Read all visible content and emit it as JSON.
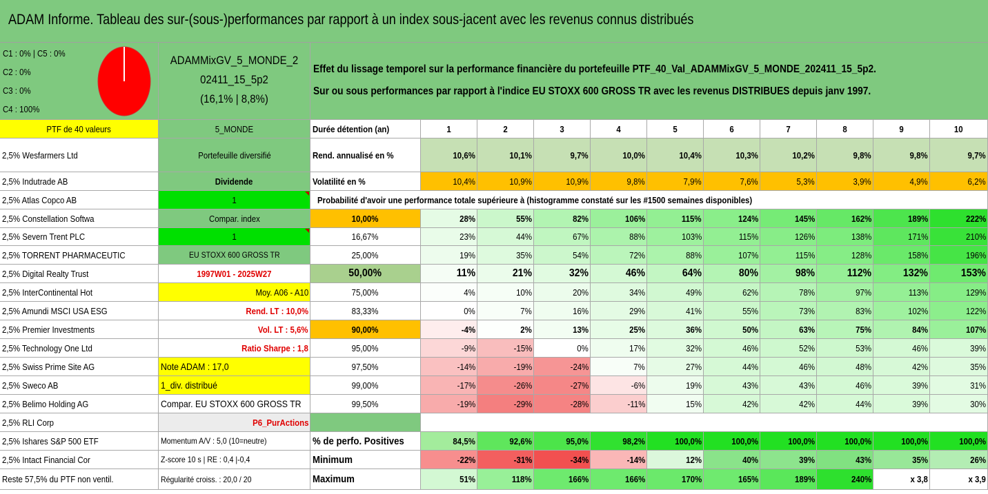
{
  "title": "ADAM Informe. Tableau des sur-(sous-)performances par rapport à un index sous-jacent avec les revenus connus distribués",
  "classes": [
    "C1 : 0% | C5 : 0%",
    "C2 : 0%",
    "C3 : 0%",
    "C4 : 100%"
  ],
  "portfolio_name_lines": [
    "ADAMMixGV_5_MONDE_2",
    "02411_15_5p2",
    "(16,1% | 8,8%)"
  ],
  "effect_lines": [
    "Effet du lissage temporel sur la performance financière du portefeuille PTF_40_Val_ADAMMixGV_5_MONDE_202411_15_5p2.",
    "Sur ou sous performances par rapport à l'indice EU STOXX 600 GROSS TR avec les revenus DISTRIBUES depuis janv 1997."
  ],
  "colors": {
    "green_header": "#7fc97f",
    "yellow": "#ffff00",
    "bright_green": "#00e000",
    "orange": "#ffc000",
    "red_text": "#e00000"
  },
  "pie_icon": "pie-chart-icon",
  "ptf_header": "PTF de 40 valeurs",
  "holdings": [
    "2,5% Wesfarmers Ltd",
    "2,5% Indutrade AB",
    "2,5% Atlas Copco AB",
    "2,5% Constellation Softwa",
    "2,5% Severn Trent PLC",
    "2,5% TORRENT PHARMACEUTIC",
    "2,5% Digital Realty Trust",
    "2,5% InterContinental Hot",
    "2,5% Amundi MSCI USA ESG",
    "2,5% Premier Investments",
    "2,5% Technology One Ltd",
    "2,5% Swiss Prime Site AG",
    "2,5% Sweco AB",
    "2,5% Belimo Holding AG",
    "2,5% RLI Corp",
    "2,5% Ishares S&P 500 ETF",
    "2,5% Intact Financial Cor",
    "Reste 57,5% du PTF non ventil."
  ],
  "info_col": [
    "5_MONDE",
    "Portefeuille diversifié",
    "Dividende",
    "1",
    "Compar. index",
    "1",
    "EU STOXX 600 GROSS TR",
    "1997W01 - 2025W27",
    "Moy. A06 - A10",
    "Rend. LT : 10,0%",
    "Vol. LT : 5,6%",
    "Ratio Sharpe : 1,8",
    "Note ADAM : 17,0",
    "1_div. distribué",
    "Compar. EU STOXX 600 GROSS TR",
    "P6_PurActions",
    "Momentum A/V : 5,0 (10=neutre)",
    "Z-score 10 s | RE : 0,4 |-0,4",
    "Régularité croiss. : 20,0 / 20"
  ],
  "duration_label": "Durée détention (an)",
  "years": [
    "1",
    "2",
    "3",
    "4",
    "5",
    "6",
    "7",
    "8",
    "9",
    "10"
  ],
  "rend_label": "Rend. annualisé en %",
  "rend_values": [
    "10,6%",
    "10,1%",
    "9,7%",
    "10,0%",
    "10,4%",
    "10,3%",
    "10,2%",
    "9,8%",
    "9,8%",
    "9,7%"
  ],
  "vol_label": "Volatilité en %",
  "vol_values": [
    "10,4%",
    "10,9%",
    "10,9%",
    "9,8%",
    "7,9%",
    "7,6%",
    "5,3%",
    "3,9%",
    "4,9%",
    "6,2%"
  ],
  "prob_title": "Probabilité d'avoir une performance totale supérieure à (histogramme constaté sur les #1500 semaines disponibles)",
  "prob_rows": [
    {
      "p": "10,00%",
      "v": [
        "28%",
        "55%",
        "82%",
        "106%",
        "115%",
        "124%",
        "145%",
        "162%",
        "189%",
        "222%"
      ]
    },
    {
      "p": "16,67%",
      "v": [
        "23%",
        "44%",
        "67%",
        "88%",
        "103%",
        "115%",
        "126%",
        "138%",
        "171%",
        "210%"
      ]
    },
    {
      "p": "25,00%",
      "v": [
        "19%",
        "35%",
        "54%",
        "72%",
        "88%",
        "107%",
        "115%",
        "128%",
        "158%",
        "196%"
      ]
    },
    {
      "p": "50,00%",
      "v": [
        "11%",
        "21%",
        "32%",
        "46%",
        "64%",
        "80%",
        "98%",
        "112%",
        "132%",
        "153%"
      ]
    },
    {
      "p": "75,00%",
      "v": [
        "4%",
        "10%",
        "20%",
        "34%",
        "49%",
        "62%",
        "78%",
        "97%",
        "113%",
        "129%"
      ]
    },
    {
      "p": "83,33%",
      "v": [
        "0%",
        "7%",
        "16%",
        "29%",
        "41%",
        "55%",
        "73%",
        "83%",
        "102%",
        "122%"
      ]
    },
    {
      "p": "90,00%",
      "v": [
        "-4%",
        "2%",
        "13%",
        "25%",
        "36%",
        "50%",
        "63%",
        "75%",
        "84%",
        "107%"
      ]
    },
    {
      "p": "95,00%",
      "v": [
        "-9%",
        "-15%",
        "0%",
        "17%",
        "32%",
        "46%",
        "52%",
        "53%",
        "46%",
        "39%"
      ]
    },
    {
      "p": "97,50%",
      "v": [
        "-14%",
        "-19%",
        "-24%",
        "7%",
        "27%",
        "44%",
        "46%",
        "48%",
        "42%",
        "35%"
      ]
    },
    {
      "p": "99,00%",
      "v": [
        "-17%",
        "-26%",
        "-27%",
        "-6%",
        "19%",
        "43%",
        "43%",
        "46%",
        "39%",
        "31%"
      ]
    },
    {
      "p": "99,50%",
      "v": [
        "-19%",
        "-29%",
        "-28%",
        "-11%",
        "15%",
        "42%",
        "42%",
        "44%",
        "39%",
        "30%"
      ]
    }
  ],
  "pos_label": "% de perfo. Positives",
  "pos_values": [
    "84,5%",
    "92,6%",
    "95,0%",
    "98,2%",
    "100,0%",
    "100,0%",
    "100,0%",
    "100,0%",
    "100,0%",
    "100,0%"
  ],
  "min_label": "Minimum",
  "min_values": [
    "-22%",
    "-31%",
    "-34%",
    "-14%",
    "12%",
    "40%",
    "39%",
    "43%",
    "35%",
    "26%"
  ],
  "max_label": "Maximum",
  "max_values": [
    "51%",
    "118%",
    "166%",
    "166%",
    "170%",
    "165%",
    "189%",
    "240%",
    "x 3,8",
    "x 3,9"
  ]
}
